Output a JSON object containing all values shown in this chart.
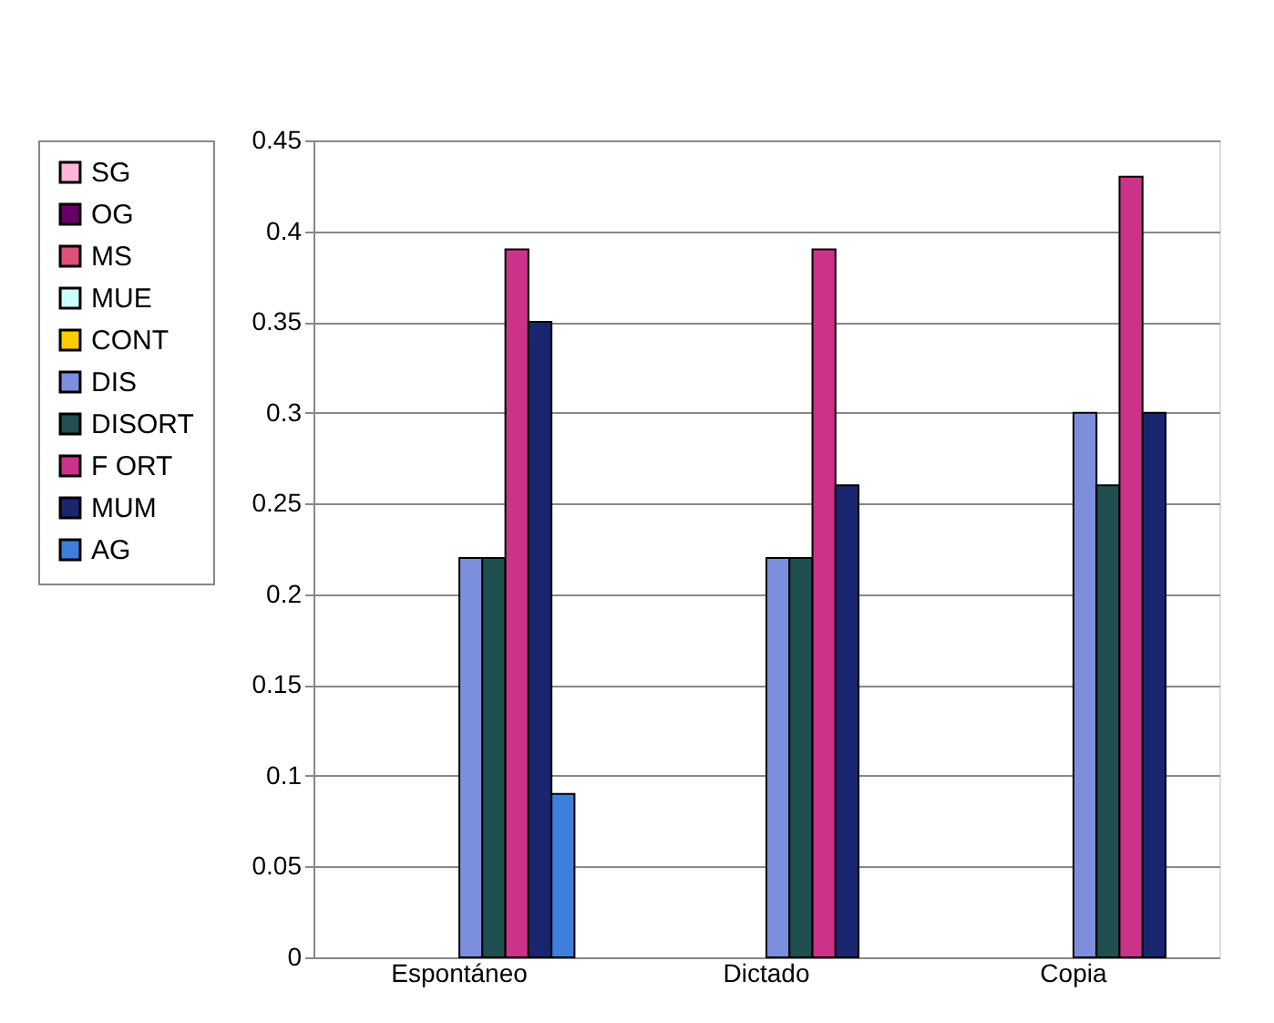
{
  "chart_data": {
    "type": "bar",
    "categories": [
      "Espontáneo",
      "Dictado",
      "Copia"
    ],
    "series": [
      {
        "name": "SG",
        "color": "#ffb6d9",
        "values": [
          null,
          null,
          null
        ]
      },
      {
        "name": "OG",
        "color": "#660066",
        "values": [
          null,
          null,
          null
        ]
      },
      {
        "name": "MS",
        "color": "#e0507a",
        "values": [
          null,
          null,
          null
        ]
      },
      {
        "name": "MUE",
        "color": "#ccffff",
        "values": [
          null,
          null,
          null
        ]
      },
      {
        "name": "CONT",
        "color": "#ffcc00",
        "values": [
          null,
          null,
          null
        ]
      },
      {
        "name": "DIS",
        "color": "#7b8fdc",
        "values": [
          0.22,
          0.22,
          0.3
        ]
      },
      {
        "name": "DISORT",
        "color": "#1f4f4f",
        "values": [
          0.22,
          0.22,
          0.26
        ]
      },
      {
        "name": "F ORT",
        "color": "#cc3388",
        "values": [
          0.39,
          0.39,
          0.43
        ]
      },
      {
        "name": "MUM",
        "color": "#1a2570",
        "values": [
          0.35,
          0.26,
          0.3
        ]
      },
      {
        "name": "AG",
        "color": "#3f7fdc",
        "values": [
          0.09,
          null,
          null
        ]
      }
    ],
    "ylim": [
      0,
      0.45
    ],
    "yticks": [
      0,
      0.05,
      0.1,
      0.15,
      0.2,
      0.25,
      0.3,
      0.35,
      0.4,
      0.45
    ],
    "grid": "y",
    "legend": "left"
  }
}
